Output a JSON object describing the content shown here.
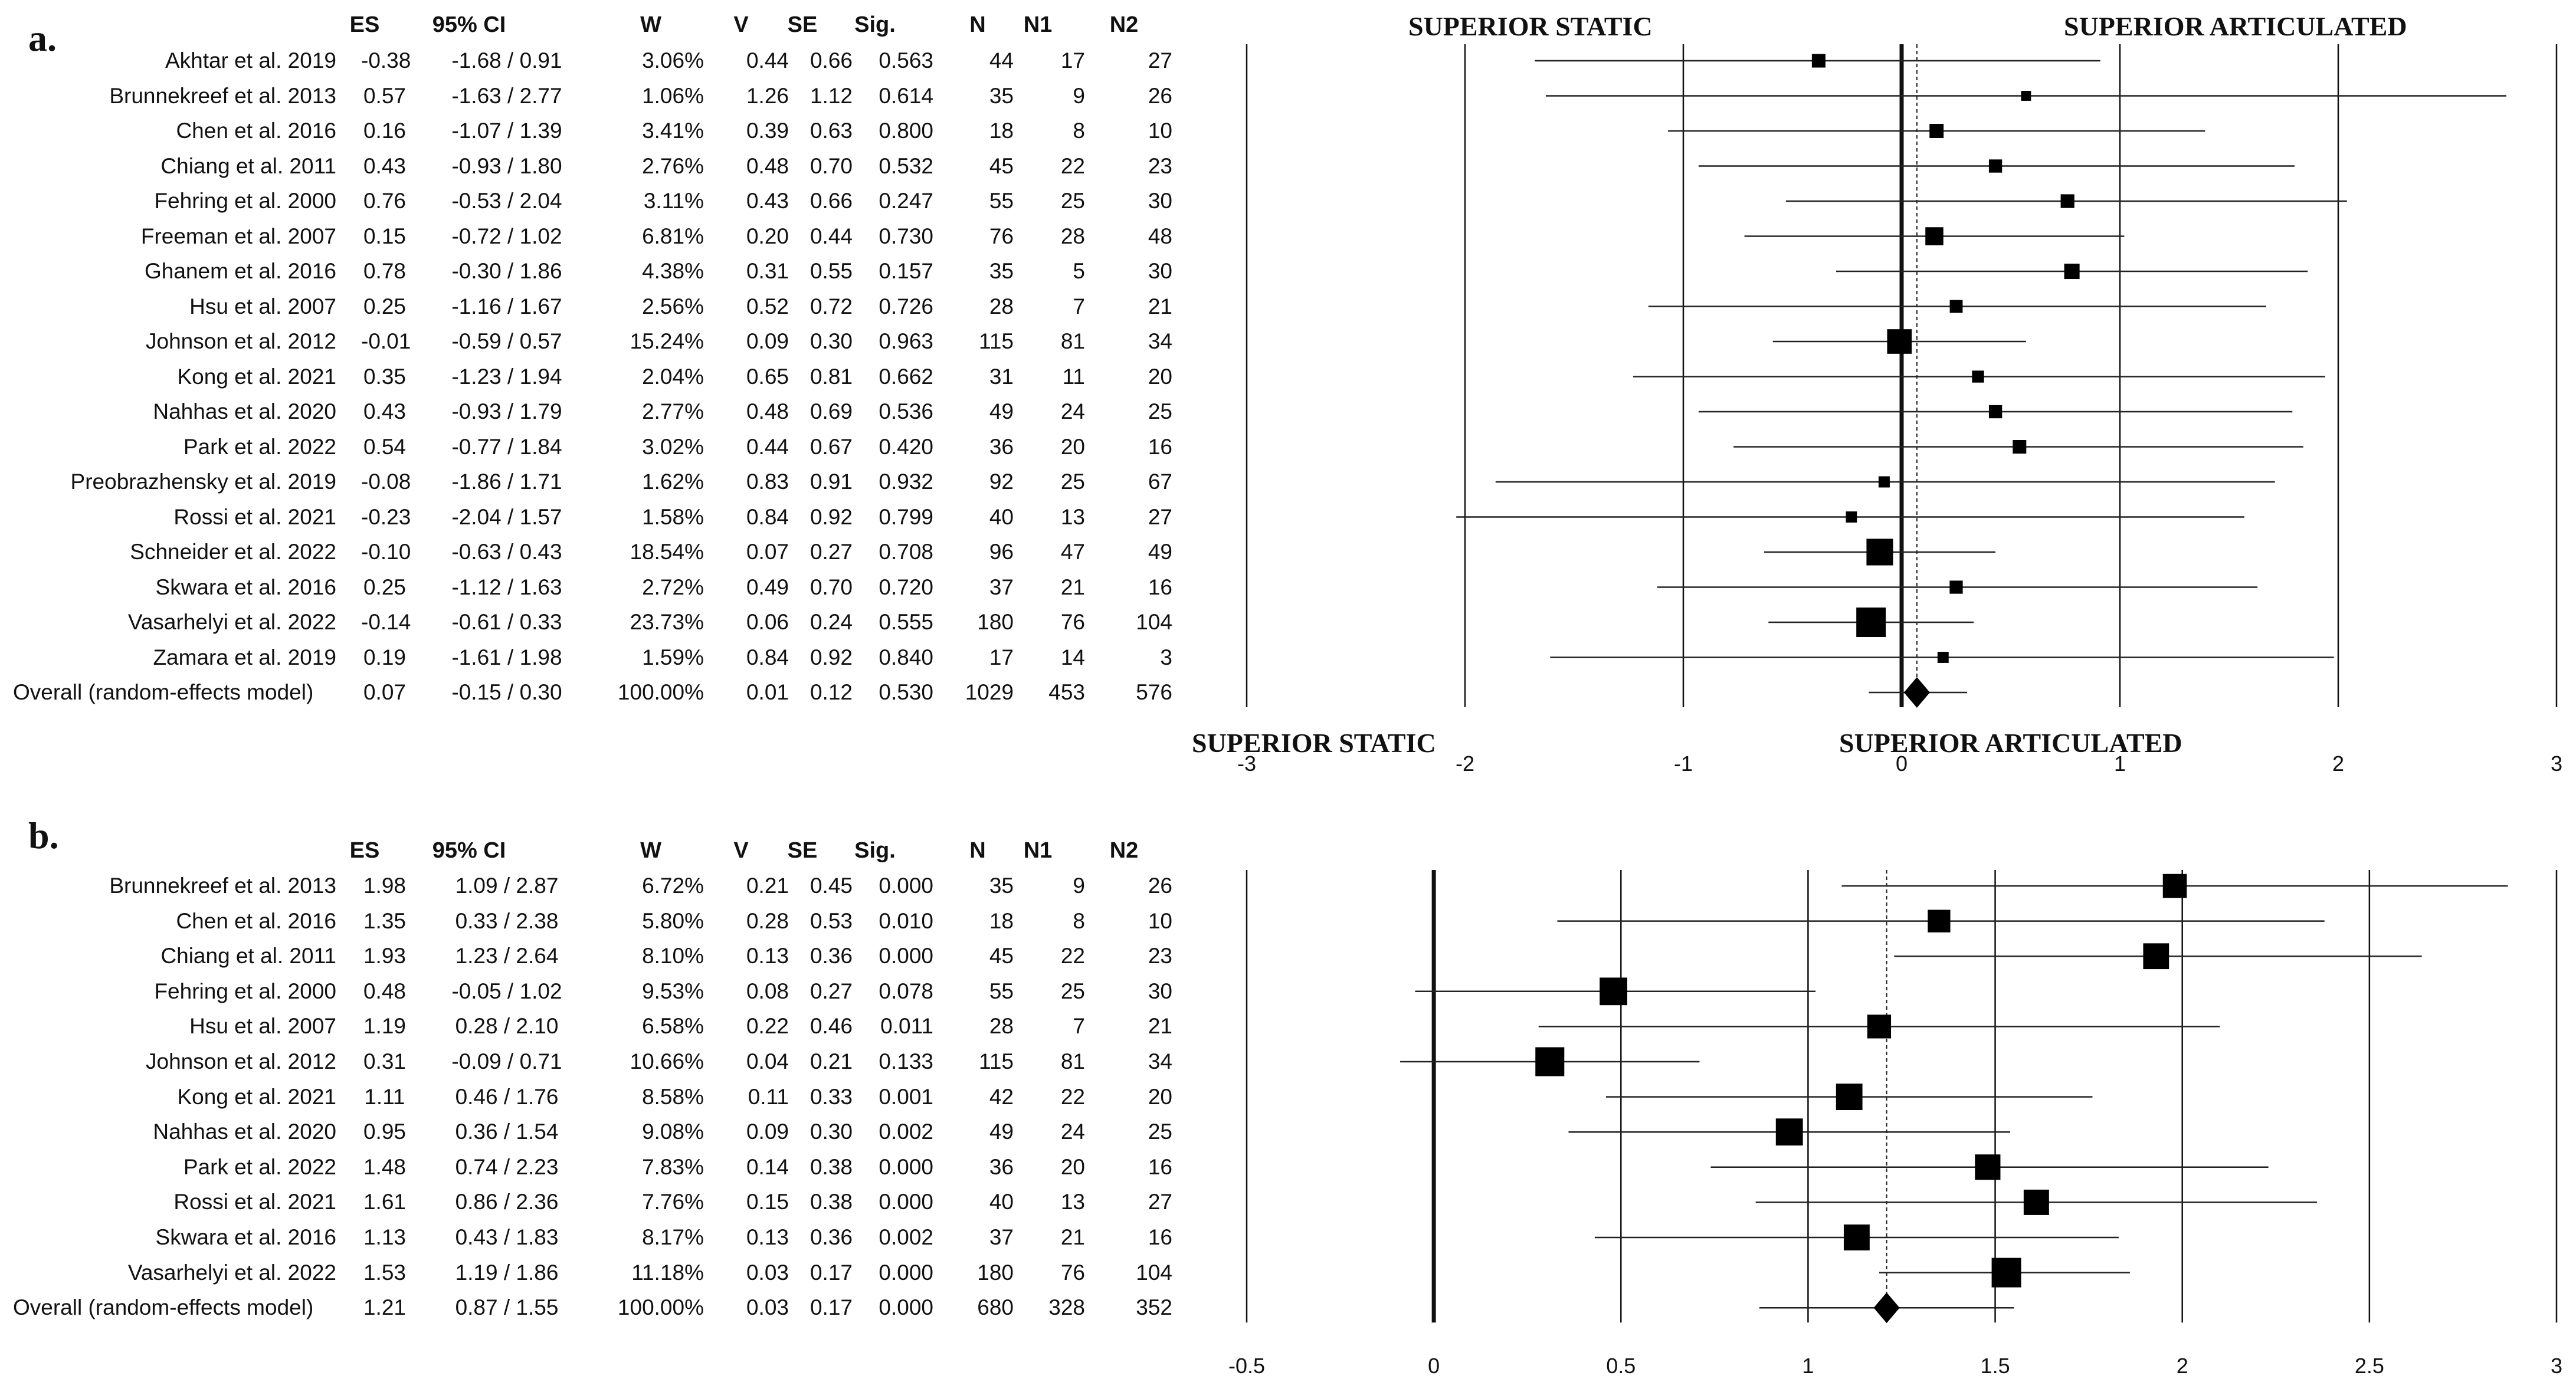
{
  "columns": [
    "ES",
    "95% CI",
    "W",
    "V",
    "SE",
    "Sig.",
    "N",
    "N1",
    "N2"
  ],
  "panels": [
    {
      "id": "a",
      "label": "a.",
      "left_title": "SUPERIOR STATIC",
      "right_title": "SUPERIOR ARTICULATED",
      "rows": [
        {
          "study": "Akhtar et al. 2019",
          "es": "-0.38",
          "ci": "-1.68 / 0.91",
          "w": "3.06%",
          "v": "0.44",
          "se": "0.66",
          "sig": "0.563",
          "n": "44",
          "n1": "17",
          "n2": "27"
        },
        {
          "study": "Brunnekreef et al. 2013",
          "es": "0.57",
          "ci": "-1.63 / 2.77",
          "w": "1.06%",
          "v": "1.26",
          "se": "1.12",
          "sig": "0.614",
          "n": "35",
          "n1": "9",
          "n2": "26"
        },
        {
          "study": "Chen et al. 2016",
          "es": "0.16",
          "ci": "-1.07 / 1.39",
          "w": "3.41%",
          "v": "0.39",
          "se": "0.63",
          "sig": "0.800",
          "n": "18",
          "n1": "8",
          "n2": "10"
        },
        {
          "study": "Chiang et al. 2011",
          "es": "0.43",
          "ci": "-0.93 / 1.80",
          "w": "2.76%",
          "v": "0.48",
          "se": "0.70",
          "sig": "0.532",
          "n": "45",
          "n1": "22",
          "n2": "23"
        },
        {
          "study": "Fehring et al. 2000",
          "es": "0.76",
          "ci": "-0.53 / 2.04",
          "w": "3.11%",
          "v": "0.43",
          "se": "0.66",
          "sig": "0.247",
          "n": "55",
          "n1": "25",
          "n2": "30"
        },
        {
          "study": "Freeman et al. 2007",
          "es": "0.15",
          "ci": "-0.72 / 1.02",
          "w": "6.81%",
          "v": "0.20",
          "se": "0.44",
          "sig": "0.730",
          "n": "76",
          "n1": "28",
          "n2": "48"
        },
        {
          "study": "Ghanem et al. 2016",
          "es": "0.78",
          "ci": "-0.30 / 1.86",
          "w": "4.38%",
          "v": "0.31",
          "se": "0.55",
          "sig": "0.157",
          "n": "35",
          "n1": "5",
          "n2": "30"
        },
        {
          "study": "Hsu et al. 2007",
          "es": "0.25",
          "ci": "-1.16 / 1.67",
          "w": "2.56%",
          "v": "0.52",
          "se": "0.72",
          "sig": "0.726",
          "n": "28",
          "n1": "7",
          "n2": "21"
        },
        {
          "study": "Johnson et al. 2012",
          "es": "-0.01",
          "ci": "-0.59 / 0.57",
          "w": "15.24%",
          "v": "0.09",
          "se": "0.30",
          "sig": "0.963",
          "n": "115",
          "n1": "81",
          "n2": "34"
        },
        {
          "study": "Kong et al. 2021",
          "es": "0.35",
          "ci": "-1.23 / 1.94",
          "w": "2.04%",
          "v": "0.65",
          "se": "0.81",
          "sig": "0.662",
          "n": "31",
          "n1": "11",
          "n2": "20"
        },
        {
          "study": "Nahhas et al. 2020",
          "es": "0.43",
          "ci": "-0.93 / 1.79",
          "w": "2.77%",
          "v": "0.48",
          "se": "0.69",
          "sig": "0.536",
          "n": "49",
          "n1": "24",
          "n2": "25"
        },
        {
          "study": "Park et al. 2022",
          "es": "0.54",
          "ci": "-0.77 / 1.84",
          "w": "3.02%",
          "v": "0.44",
          "se": "0.67",
          "sig": "0.420",
          "n": "36",
          "n1": "20",
          "n2": "16"
        },
        {
          "study": "Preobrazhensky et al. 2019",
          "es": "-0.08",
          "ci": "-1.86 / 1.71",
          "w": "1.62%",
          "v": "0.83",
          "se": "0.91",
          "sig": "0.932",
          "n": "92",
          "n1": "25",
          "n2": "67"
        },
        {
          "study": "Rossi et al. 2021",
          "es": "-0.23",
          "ci": "-2.04 / 1.57",
          "w": "1.58%",
          "v": "0.84",
          "se": "0.92",
          "sig": "0.799",
          "n": "40",
          "n1": "13",
          "n2": "27"
        },
        {
          "study": "Schneider et al. 2022",
          "es": "-0.10",
          "ci": "-0.63 / 0.43",
          "w": "18.54%",
          "v": "0.07",
          "se": "0.27",
          "sig": "0.708",
          "n": "96",
          "n1": "47",
          "n2": "49"
        },
        {
          "study": "Skwara et al. 2016",
          "es": "0.25",
          "ci": "-1.12 / 1.63",
          "w": "2.72%",
          "v": "0.49",
          "se": "0.70",
          "sig": "0.720",
          "n": "37",
          "n1": "21",
          "n2": "16"
        },
        {
          "study": "Vasarhelyi et al. 2022",
          "es": "-0.14",
          "ci": "-0.61 / 0.33",
          "w": "23.73%",
          "v": "0.06",
          "se": "0.24",
          "sig": "0.555",
          "n": "180",
          "n1": "76",
          "n2": "104"
        },
        {
          "study": "Zamara et al. 2019",
          "es": "0.19",
          "ci": "-1.61 / 1.98",
          "w": "1.59%",
          "v": "0.84",
          "se": "0.92",
          "sig": "0.840",
          "n": "17",
          "n1": "14",
          "n2": "3"
        }
      ],
      "overall": {
        "study": "Overall (random-effects model)",
        "es": "0.07",
        "ci": "-0.15 / 0.30",
        "w": "100.00%",
        "v": "0.01",
        "se": "0.12",
        "sig": "0.530",
        "n": "1029",
        "n1": "453",
        "n2": "576"
      }
    },
    {
      "id": "b",
      "label": "b.",
      "left_title": "SUPERIOR STATIC",
      "right_title": "SUPERIOR ARTICULATED",
      "rows": [
        {
          "study": "Brunnekreef et al. 2013",
          "es": "1.98",
          "ci": "1.09 / 2.87",
          "w": "6.72%",
          "v": "0.21",
          "se": "0.45",
          "sig": "0.000",
          "n": "35",
          "n1": "9",
          "n2": "26"
        },
        {
          "study": "Chen et al. 2016",
          "es": "1.35",
          "ci": "0.33 / 2.38",
          "w": "5.80%",
          "v": "0.28",
          "se": "0.53",
          "sig": "0.010",
          "n": "18",
          "n1": "8",
          "n2": "10"
        },
        {
          "study": "Chiang et al. 2011",
          "es": "1.93",
          "ci": "1.23 / 2.64",
          "w": "8.10%",
          "v": "0.13",
          "se": "0.36",
          "sig": "0.000",
          "n": "45",
          "n1": "22",
          "n2": "23"
        },
        {
          "study": "Fehring et al. 2000",
          "es": "0.48",
          "ci": "-0.05 / 1.02",
          "w": "9.53%",
          "v": "0.08",
          "se": "0.27",
          "sig": "0.078",
          "n": "55",
          "n1": "25",
          "n2": "30"
        },
        {
          "study": "Hsu et al. 2007",
          "es": "1.19",
          "ci": "0.28 / 2.10",
          "w": "6.58%",
          "v": "0.22",
          "se": "0.46",
          "sig": "0.011",
          "n": "28",
          "n1": "7",
          "n2": "21"
        },
        {
          "study": "Johnson et al. 2012",
          "es": "0.31",
          "ci": "-0.09 / 0.71",
          "w": "10.66%",
          "v": "0.04",
          "se": "0.21",
          "sig": "0.133",
          "n": "115",
          "n1": "81",
          "n2": "34"
        },
        {
          "study": "Kong et al. 2021",
          "es": "1.11",
          "ci": "0.46 / 1.76",
          "w": "8.58%",
          "v": "0.11",
          "se": "0.33",
          "sig": "0.001",
          "n": "42",
          "n1": "22",
          "n2": "20"
        },
        {
          "study": "Nahhas et al. 2020",
          "es": "0.95",
          "ci": "0.36 / 1.54",
          "w": "9.08%",
          "v": "0.09",
          "se": "0.30",
          "sig": "0.002",
          "n": "49",
          "n1": "24",
          "n2": "25"
        },
        {
          "study": "Park et al. 2022",
          "es": "1.48",
          "ci": "0.74 / 2.23",
          "w": "7.83%",
          "v": "0.14",
          "se": "0.38",
          "sig": "0.000",
          "n": "36",
          "n1": "20",
          "n2": "16"
        },
        {
          "study": "Rossi et al. 2021",
          "es": "1.61",
          "ci": "0.86 / 2.36",
          "w": "7.76%",
          "v": "0.15",
          "se": "0.38",
          "sig": "0.000",
          "n": "40",
          "n1": "13",
          "n2": "27"
        },
        {
          "study": "Skwara et al. 2016",
          "es": "1.13",
          "ci": "0.43 / 1.83",
          "w": "8.17%",
          "v": "0.13",
          "se": "0.36",
          "sig": "0.002",
          "n": "37",
          "n1": "21",
          "n2": "16"
        },
        {
          "study": "Vasarhelyi et al. 2022",
          "es": "1.53",
          "ci": "1.19 / 1.86",
          "w": "11.18%",
          "v": "0.03",
          "se": "0.17",
          "sig": "0.000",
          "n": "180",
          "n1": "76",
          "n2": "104"
        }
      ],
      "overall": {
        "study": "Overall (random-effects model)",
        "es": "1.21",
        "ci": "0.87 / 1.55",
        "w": "100.00%",
        "v": "0.03",
        "se": "0.17",
        "sig": "0.000",
        "n": "680",
        "n1": "328",
        "n2": "352"
      }
    }
  ],
  "chart_data": [
    {
      "type": "forest",
      "panel": "a",
      "xlim": [
        -3,
        3
      ],
      "xticks": [
        -3,
        -2,
        -1,
        0,
        1,
        2,
        3
      ],
      "xtick_labels": [
        "-3",
        "-2",
        "-1",
        "0",
        "1",
        "2",
        "3"
      ],
      "labels": [
        "Akhtar et al. 2019",
        "Brunnekreef et al. 2013",
        "Chen et al. 2016",
        "Chiang et al. 2011",
        "Fehring et al. 2000",
        "Freeman et al. 2007",
        "Ghanem et al. 2016",
        "Hsu et al. 2007",
        "Johnson et al. 2012",
        "Kong et al. 2021",
        "Nahhas et al. 2020",
        "Park et al. 2022",
        "Preobrazhensky et al. 2019",
        "Rossi et al. 2021",
        "Schneider et al. 2022",
        "Skwara et al. 2016",
        "Vasarhelyi et al. 2022",
        "Zamara et al. 2019"
      ],
      "es": [
        -0.38,
        0.57,
        0.16,
        0.43,
        0.76,
        0.15,
        0.78,
        0.25,
        -0.01,
        0.35,
        0.43,
        0.54,
        -0.08,
        -0.23,
        -0.1,
        0.25,
        -0.14,
        0.19
      ],
      "lower": [
        -1.68,
        -1.63,
        -1.07,
        -0.93,
        -0.53,
        -0.72,
        -0.3,
        -1.16,
        -0.59,
        -1.23,
        -0.93,
        -0.77,
        -1.86,
        -2.04,
        -0.63,
        -1.12,
        -0.61,
        -1.61
      ],
      "upper": [
        0.91,
        2.77,
        1.39,
        1.8,
        2.04,
        1.02,
        1.86,
        1.67,
        0.57,
        1.94,
        1.79,
        1.84,
        1.71,
        1.57,
        0.43,
        1.63,
        0.33,
        1.98
      ],
      "weights": [
        3.06,
        1.06,
        3.41,
        2.76,
        3.11,
        6.81,
        4.38,
        2.56,
        15.24,
        2.04,
        2.77,
        3.02,
        1.62,
        1.58,
        18.54,
        2.72,
        23.73,
        1.59
      ],
      "overall": {
        "es": 0.07,
        "lower": -0.15,
        "upper": 0.3
      },
      "null_line": 0
    },
    {
      "type": "forest",
      "panel": "b",
      "xlim": [
        -0.5,
        3
      ],
      "xticks": [
        -0.5,
        0,
        0.5,
        1,
        1.5,
        2,
        2.5,
        3
      ],
      "xtick_labels": [
        "-0.5",
        "0",
        "0.5",
        "1",
        "1.5",
        "2",
        "2.5",
        "3"
      ],
      "labels": [
        "Brunnekreef et al. 2013",
        "Chen et al. 2016",
        "Chiang et al. 2011",
        "Fehring et al. 2000",
        "Hsu et al. 2007",
        "Johnson et al. 2012",
        "Kong et al. 2021",
        "Nahhas et al. 2020",
        "Park et al. 2022",
        "Rossi et al. 2021",
        "Skwara et al. 2016",
        "Vasarhelyi et al. 2022"
      ],
      "es": [
        1.98,
        1.35,
        1.93,
        0.48,
        1.19,
        0.31,
        1.11,
        0.95,
        1.48,
        1.61,
        1.13,
        1.53
      ],
      "lower": [
        1.09,
        0.33,
        1.23,
        -0.05,
        0.28,
        -0.09,
        0.46,
        0.36,
        0.74,
        0.86,
        0.43,
        1.19
      ],
      "upper": [
        2.87,
        2.38,
        2.64,
        1.02,
        2.1,
        0.71,
        1.76,
        1.54,
        2.23,
        2.36,
        1.83,
        1.86
      ],
      "weights": [
        6.72,
        5.8,
        8.1,
        9.53,
        6.58,
        10.66,
        8.58,
        9.08,
        7.83,
        7.76,
        8.17,
        11.18
      ],
      "overall": {
        "es": 1.21,
        "lower": 0.87,
        "upper": 1.55
      },
      "null_line": 0
    }
  ]
}
